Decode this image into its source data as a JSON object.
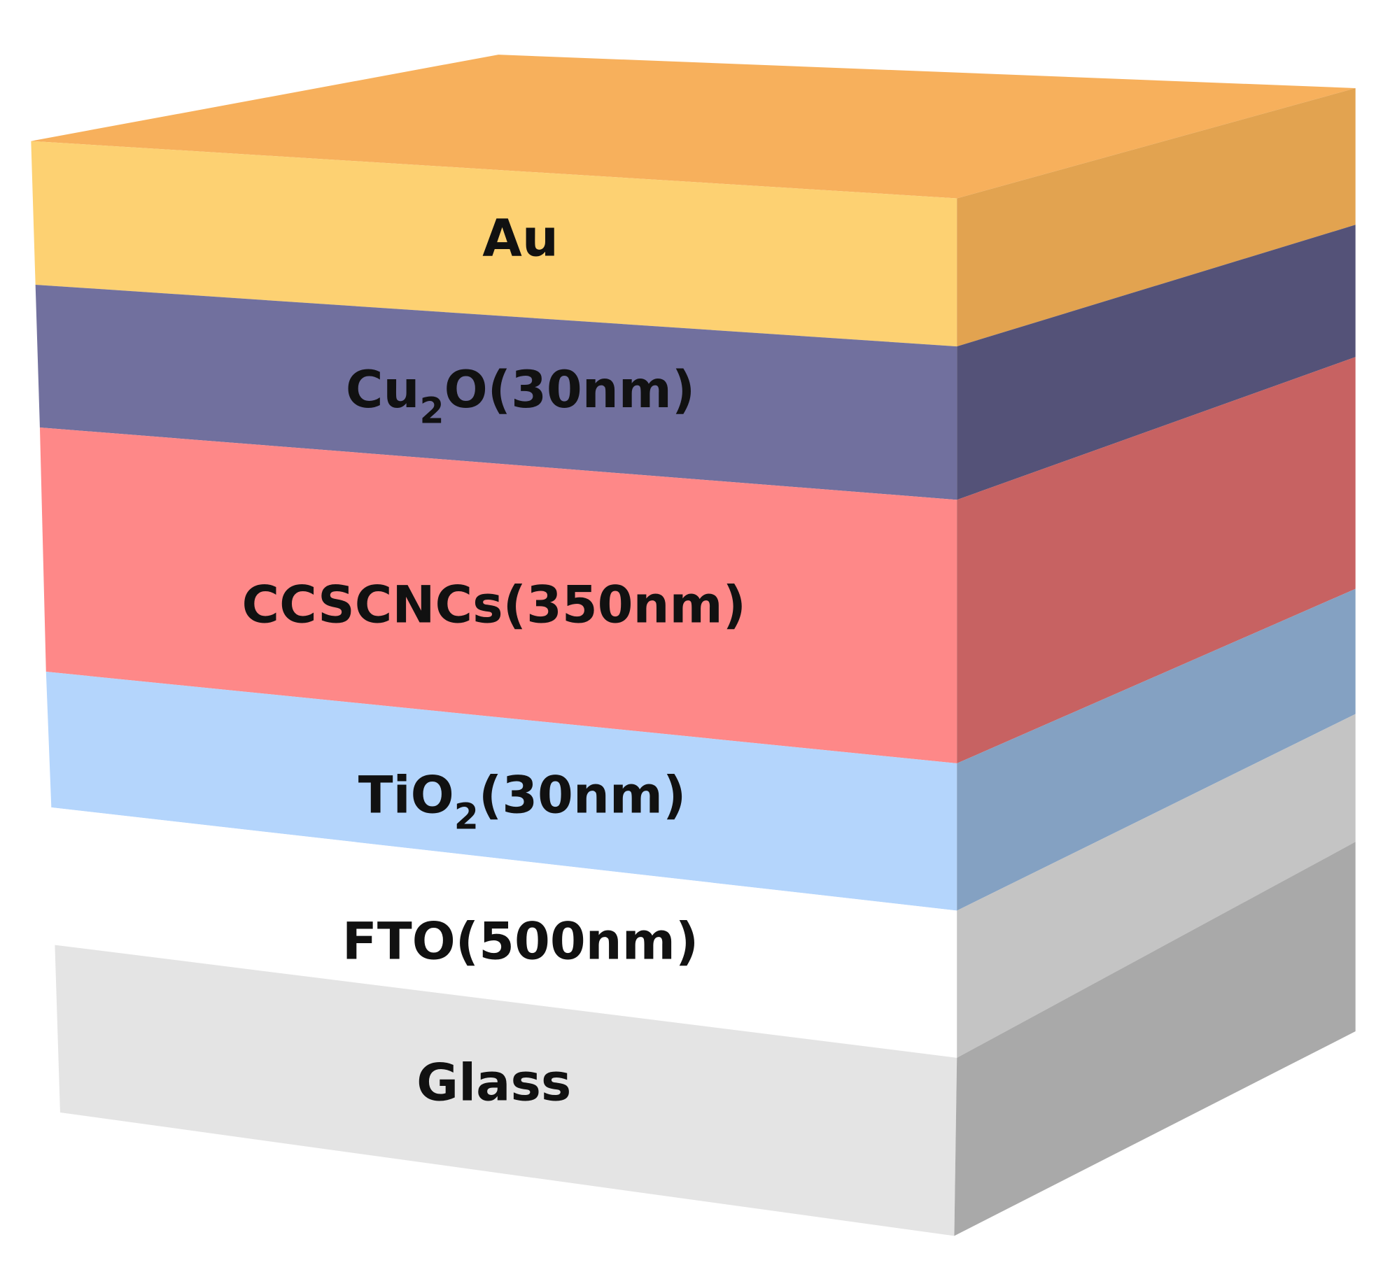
{
  "layers": [
    {
      "text": "Au"
    },
    {
      "text": "Cu",
      "sub": "2",
      "rest": "O(30nm)"
    },
    {
      "text": "CCSCNCs(350nm)"
    },
    {
      "text": "TiO",
      "sub": "2",
      "rest": "(30nm)"
    },
    {
      "text": "FTO(500nm)"
    },
    {
      "text": "Glass"
    }
  ]
}
